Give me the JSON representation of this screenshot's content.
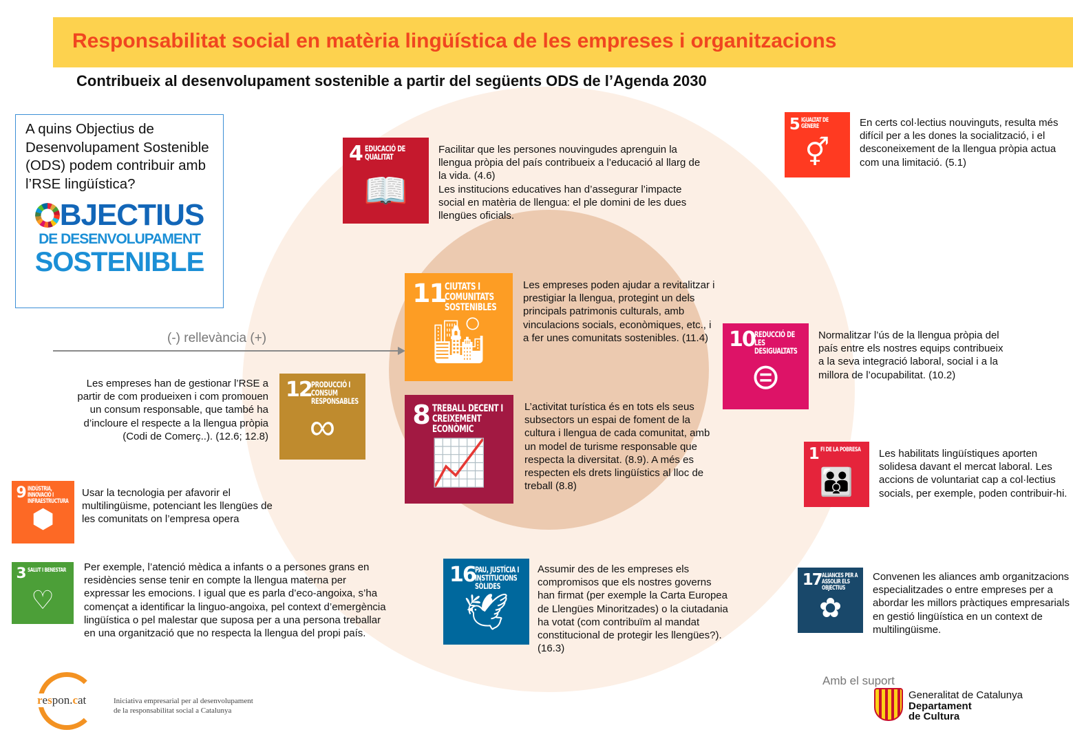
{
  "header": {
    "title": "Responsabilitat social en matèria lingüística de les empreses i organitzacions",
    "subtitle": "Contribueix al desenvolupament sostenible a partir del següents ODS de l’Agenda 2030"
  },
  "question_box": {
    "text": "A quins Objectius de Desenvolupament Sostenible (ODS) podem contribuir amb l’RSE lingüística?",
    "logo": {
      "line1": "BJECTIUS",
      "line2": "DE DESENVOLUPAMENT",
      "line3": "SOSTENIBLE"
    }
  },
  "relevance": {
    "label": "(-)  rellevància  (+)"
  },
  "colors": {
    "header_bg": "#fdd24e",
    "title": "#f0461f",
    "outer_circle": "#fcefe5",
    "inner_circle": "#eccab0"
  },
  "goals": [
    {
      "num": "4",
      "name": "Educació de qualitat",
      "color": "#c5192d",
      "icon": "book-pencil-icon",
      "text": "Facilitar que les persones nouvingudes aprenguin la llengua pròpia del país contribueix a l’educació al llarg de la vida. (4.6)\nLes institucions educatives han d’assegurar l’impacte social en matèria de llengua: el ple domini de les dues llengües oficials."
    },
    {
      "num": "5",
      "name": "Igualtat de gènere",
      "color": "#ff3a21",
      "icon": "gender-equality-icon",
      "text": "En certs col·lectius nouvinguts, resulta més difícil per a les dones la socialització, i el desconeixement de la llengua pròpia actua com una limitació. (5.1)"
    },
    {
      "num": "11",
      "name": "Ciutats i comunitats sostenibles",
      "color": "#fd9d24",
      "icon": "city-icon",
      "text": "Les empreses poden ajudar a revitalitzar i prestigiar la llengua, protegint un dels principals patrimonis culturals, amb vinculacions socials, econòmiques, etc., i a fer unes comunitats sostenibles. (11.4)"
    },
    {
      "num": "10",
      "name": "Reducció de les desigualtats",
      "color": "#dd1367",
      "icon": "reduced-inequality-icon",
      "text": "Normalitzar l’ús de la llengua pròpia del país entre els nostres equips contribueix a la seva integració laboral, social i a la millora de l’ocupabilitat. (10.2)"
    },
    {
      "num": "12",
      "name": "Producció i consum responsables",
      "color": "#bf8b2e",
      "icon": "infinity-icon",
      "text": "Les empreses han de gestionar l’RSE a partir de com produeixen i com promouen un consum responsable, que també ha d’incloure el respecte a la llengua pròpia (Codi de Comerç..). (12.6; 12.8)"
    },
    {
      "num": "8",
      "name": "Treball decent i creixement econòmic",
      "color": "#a21942",
      "icon": "growth-chart-icon",
      "text": "L’activitat turística és en tots els seus subsectors un espai de foment de la cultura i llengua de cada comunitat, amb un model de turisme responsable que respecta la diversitat. (8.9). A més es respecten els drets lingüístics al lloc de treball (8.8)"
    },
    {
      "num": "1",
      "name": "Fi de la pobresa",
      "color": "#e5243b",
      "icon": "family-icon",
      "text": "Les habilitats lingüístiques aporten solidesa davant el mercat laboral. Les accions de voluntariat cap a col·lectius socials, per exemple, poden contribuir-hi."
    },
    {
      "num": "9",
      "name": "Indústria, innovació i infraestructura",
      "color": "#fd6925",
      "icon": "cubes-icon",
      "text": "Usar la tecnologia per afavorir el multilingüisme, potenciant les llengües de les comunitats on l’empresa opera"
    },
    {
      "num": "3",
      "name": "Salut i benestar",
      "color": "#4c9f38",
      "icon": "heartbeat-icon",
      "text": "Per exemple, l’atenció mèdica a infants o a persones grans en residències sense tenir en compte la llengua materna per expressar les emocions. I igual que es parla d’eco-angoixa, s’ha començat a identificar la linguo-angoixa, pel context d’emergència lingüística o pel malestar que suposa per a una persona treballar en una organització que no respecta la llengua del propi país."
    },
    {
      "num": "16",
      "name": "Pau, justícia i institucions sòlides",
      "color": "#00689d",
      "icon": "dove-gavel-icon",
      "text": "Assumir des de les empreses els compromisos que els nostres governs han firmat (per exemple la Carta Europea de Llengües Minoritzades) o la ciutadania ha votat (com contribuïm al mandat constitucional de protegir les llengües?). (16.3)"
    },
    {
      "num": "17",
      "name": "Aliances per a assolir els objectius",
      "color": "#19486a",
      "icon": "flower-rings-icon",
      "text": "Convenen les aliances amb organitzacions especialitzades o entre empreses per a abordar les millors pràctiques empresarials en gestió lingüística en un context de multilingüisme."
    }
  ],
  "footer": {
    "org_logo": "respon.cat",
    "org_tagline_1": "Iniciativa empresarial per al desenvolupament",
    "org_tagline_2": "de la responsabilitat social a Catalunya",
    "support_label": "Amb el suport",
    "gov_line1": "Generalitat de Catalunya",
    "gov_line2": "Departament",
    "gov_line3": "de Cultura"
  }
}
